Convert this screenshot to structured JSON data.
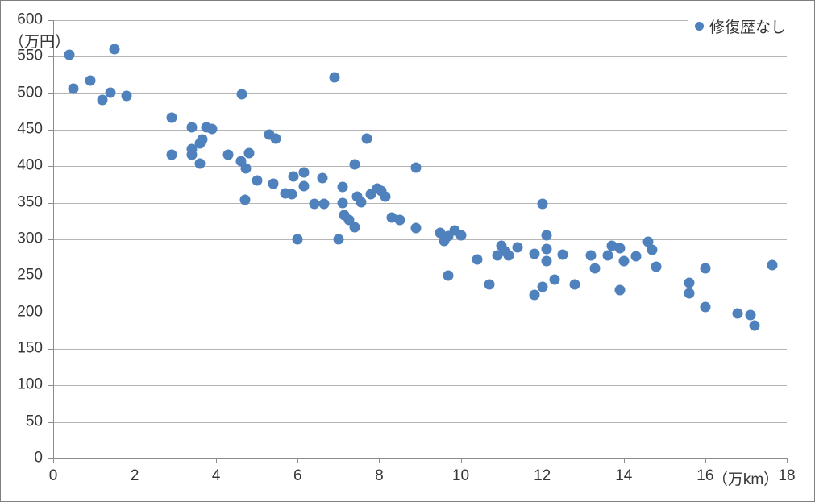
{
  "chart_data": {
    "type": "scatter",
    "title": "",
    "legend_position": "top-right",
    "grid": "horizontal-only",
    "x_axis": {
      "min": 0,
      "max": 18,
      "tick_step": 2,
      "ticks": [
        0,
        2,
        4,
        6,
        8,
        10,
        12,
        14,
        16,
        18
      ],
      "unit_label": "（万km）"
    },
    "y_axis": {
      "min": 0,
      "max": 600,
      "tick_step": 50,
      "ticks": [
        0,
        50,
        100,
        150,
        200,
        250,
        300,
        350,
        400,
        450,
        500,
        550,
        600
      ],
      "unit_label": "（万円）"
    },
    "colors": {
      "series_blue": "#4f81bd",
      "gridline": "#b5b5b5",
      "axis": "#8c8c8c",
      "text": "#363636"
    },
    "series": [
      {
        "name": "修復歴なし",
        "color": "#4f81bd",
        "points": [
          [
            0.4,
            553
          ],
          [
            0.5,
            506
          ],
          [
            0.9,
            517
          ],
          [
            1.2,
            491
          ],
          [
            1.4,
            501
          ],
          [
            1.5,
            560
          ],
          [
            1.8,
            496
          ],
          [
            2.9,
            467
          ],
          [
            2.9,
            416
          ],
          [
            3.4,
            453
          ],
          [
            3.4,
            424
          ],
          [
            3.4,
            416
          ],
          [
            3.6,
            431
          ],
          [
            3.6,
            404
          ],
          [
            3.65,
            437
          ],
          [
            3.75,
            453
          ],
          [
            3.9,
            451
          ],
          [
            4.3,
            416
          ],
          [
            4.6,
            407
          ],
          [
            4.63,
            498
          ],
          [
            4.7,
            354
          ],
          [
            4.72,
            397
          ],
          [
            4.8,
            418
          ],
          [
            5.0,
            381
          ],
          [
            5.3,
            443
          ],
          [
            5.4,
            376
          ],
          [
            5.45,
            438
          ],
          [
            5.7,
            363
          ],
          [
            5.85,
            362
          ],
          [
            5.9,
            386
          ],
          [
            6.0,
            300
          ],
          [
            6.15,
            392
          ],
          [
            6.15,
            373
          ],
          [
            6.4,
            348
          ],
          [
            6.6,
            384
          ],
          [
            6.65,
            349
          ],
          [
            6.9,
            522
          ],
          [
            7.0,
            300
          ],
          [
            7.1,
            372
          ],
          [
            7.1,
            350
          ],
          [
            7.15,
            333
          ],
          [
            7.25,
            327
          ],
          [
            7.4,
            403
          ],
          [
            7.4,
            316
          ],
          [
            7.45,
            358
          ],
          [
            7.55,
            351
          ],
          [
            7.7,
            438
          ],
          [
            7.8,
            362
          ],
          [
            7.95,
            370
          ],
          [
            8.05,
            366
          ],
          [
            8.15,
            358
          ],
          [
            8.3,
            330
          ],
          [
            8.5,
            327
          ],
          [
            8.9,
            398
          ],
          [
            8.9,
            315
          ],
          [
            9.5,
            309
          ],
          [
            9.6,
            298
          ],
          [
            9.7,
            304
          ],
          [
            9.7,
            250
          ],
          [
            9.85,
            312
          ],
          [
            10.0,
            305
          ],
          [
            10.4,
            272
          ],
          [
            10.7,
            238
          ],
          [
            10.9,
            278
          ],
          [
            11.0,
            291
          ],
          [
            11.1,
            284
          ],
          [
            11.17,
            278
          ],
          [
            11.4,
            289
          ],
          [
            11.8,
            280
          ],
          [
            11.8,
            224
          ],
          [
            12.0,
            348
          ],
          [
            12.0,
            235
          ],
          [
            12.1,
            305
          ],
          [
            12.1,
            287
          ],
          [
            12.1,
            270
          ],
          [
            12.3,
            245
          ],
          [
            12.5,
            279
          ],
          [
            12.8,
            238
          ],
          [
            13.2,
            278
          ],
          [
            13.3,
            260
          ],
          [
            13.6,
            278
          ],
          [
            13.7,
            291
          ],
          [
            13.9,
            288
          ],
          [
            13.9,
            231
          ],
          [
            14.0,
            270
          ],
          [
            14.3,
            277
          ],
          [
            14.6,
            297
          ],
          [
            14.7,
            286
          ],
          [
            14.8,
            262
          ],
          [
            15.6,
            240
          ],
          [
            15.6,
            226
          ],
          [
            16.0,
            260
          ],
          [
            16.0,
            207
          ],
          [
            16.8,
            199
          ],
          [
            17.1,
            196
          ],
          [
            17.2,
            182
          ],
          [
            17.65,
            265
          ]
        ]
      }
    ]
  }
}
